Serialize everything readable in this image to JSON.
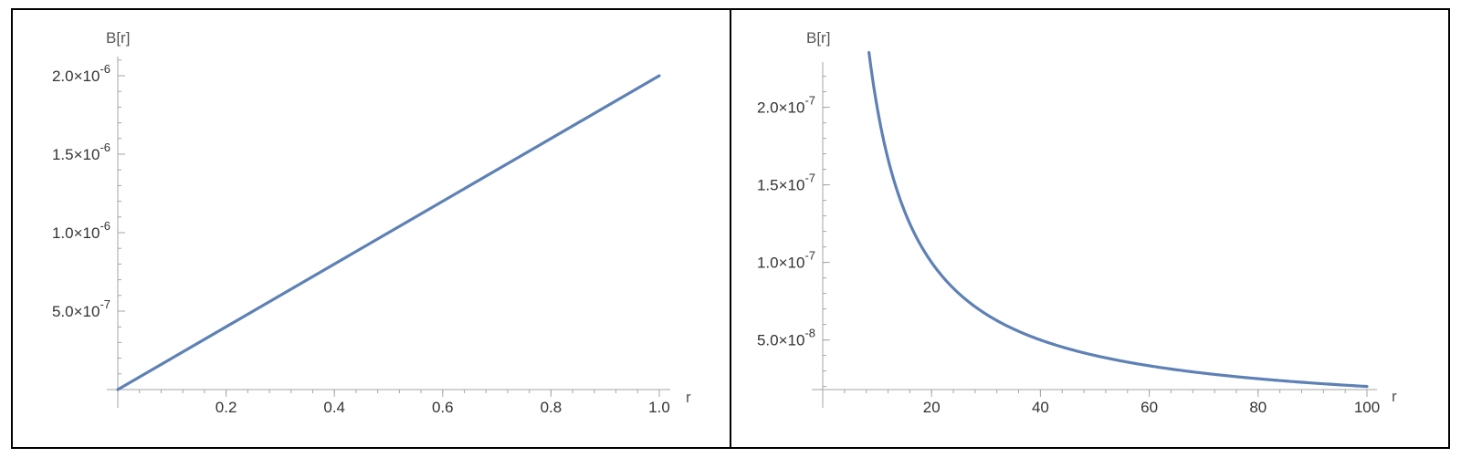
{
  "chart_data": [
    {
      "type": "line",
      "xlabel": "r",
      "ylabel": "B[r]",
      "xlim": [
        0,
        1.0
      ],
      "ylim": [
        0,
        2e-06
      ],
      "x_ticks": [
        "0.2",
        "0.4",
        "0.6",
        "0.8",
        "1.0"
      ],
      "y_ticks": [
        {
          "mantissa": "5.0",
          "exponent": "-7"
        },
        {
          "mantissa": "1.0",
          "exponent": "-6"
        },
        {
          "mantissa": "1.5",
          "exponent": "-6"
        },
        {
          "mantissa": "2.0",
          "exponent": "-6"
        }
      ],
      "series": [
        {
          "color": "#5e81b5",
          "x": [
            0.0,
            0.25,
            0.5,
            0.75,
            1.0
          ],
          "y": [
            0.0,
            5e-07,
            1e-06,
            1.5e-06,
            2e-06
          ]
        }
      ],
      "grid": false
    },
    {
      "type": "line",
      "xlabel": "r",
      "ylabel": "B[r]",
      "xlim": [
        0,
        100
      ],
      "ylim": [
        1.8e-08,
        2.4e-07
      ],
      "x_ticks": [
        "20",
        "40",
        "60",
        "80",
        "100"
      ],
      "y_ticks": [
        {
          "mantissa": "5.0",
          "exponent": "-8"
        },
        {
          "mantissa": "1.0",
          "exponent": "-7"
        },
        {
          "mantissa": "1.5",
          "exponent": "-7"
        },
        {
          "mantissa": "2.0",
          "exponent": "-7"
        }
      ],
      "series": [
        {
          "color": "#5e81b5",
          "x": [
            8.5,
            10,
            12,
            15,
            20,
            25,
            30,
            40,
            50,
            60,
            70,
            80,
            90,
            100
          ],
          "y": [
            2.353e-07,
            2e-07,
            1.667e-07,
            1.333e-07,
            1e-07,
            8e-08,
            6.667e-08,
            5e-08,
            4e-08,
            3.333e-08,
            2.857e-08,
            2.5e-08,
            2.222e-08,
            2e-08
          ]
        }
      ],
      "grid": false
    }
  ]
}
